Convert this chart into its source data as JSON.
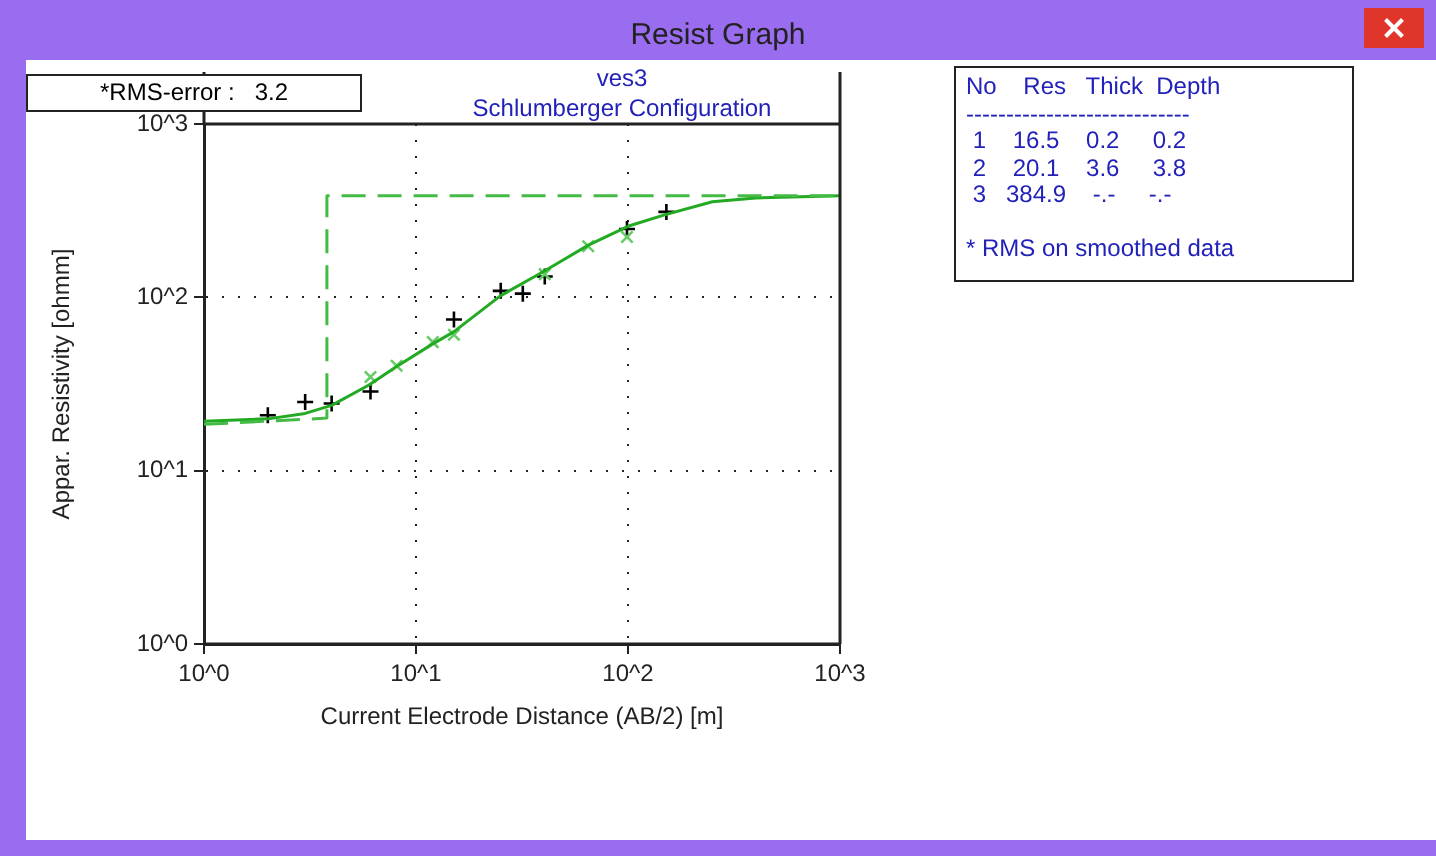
{
  "chart_data": {
    "type": "line",
    "title": "ves3",
    "subtitle": "Schlumberger Configuration",
    "xlabel": "Current Electrode Distance (AB/2) [m]",
    "ylabel": "Appar. Resistivity [ohmm]",
    "log": "xy",
    "grid": true,
    "legend": false,
    "xlim": [
      1,
      1000
    ],
    "xticks": [
      {
        "value": 1,
        "label": "10^0"
      },
      {
        "value": 10,
        "label": "10^1"
      },
      {
        "value": 100,
        "label": "10^2"
      },
      {
        "value": 1000,
        "label": "10^3"
      }
    ],
    "ylim": [
      1,
      1000
    ],
    "yticks": [
      {
        "value": 1,
        "label": "10^0"
      },
      {
        "value": 10,
        "label": "10^1"
      },
      {
        "value": 100,
        "label": "10^2"
      },
      {
        "value": 1000,
        "label": "10^3"
      }
    ],
    "series": [
      {
        "color": "#44bb44",
        "line_style": "dashed",
        "marker": "none",
        "x": [
          1,
          3.8,
          3.8,
          1000
        ],
        "values": [
          18.5,
          20.1,
          384.9,
          384.9
        ]
      },
      {
        "color": "#22aa22",
        "line_style": "solid",
        "marker": "none",
        "x": [
          1,
          2,
          3,
          4,
          6,
          8,
          12,
          15,
          25,
          40,
          65,
          100,
          150,
          250,
          400,
          1000
        ],
        "values": [
          19.3,
          19.9,
          21.4,
          23.8,
          31.2,
          39.5,
          53.9,
          63,
          102,
          141,
          200,
          257,
          300,
          356,
          374,
          385
        ]
      },
      {
        "type": "scatter",
        "color": "#66cc66",
        "marker": "cross",
        "x": [
          6.1,
          8.1,
          12,
          15.1,
          40.5,
          64.9,
          98.9
        ],
        "values": [
          34.7,
          40.3,
          55.2,
          60.8,
          136,
          197,
          223
        ]
      },
      {
        "type": "scatter",
        "color": "#000000",
        "marker": "plus",
        "x": [
          2,
          3,
          4,
          6.1,
          15.1,
          25.1,
          31.9,
          40.5,
          98.9,
          151.7
        ],
        "values": [
          20.9,
          24.9,
          24.4,
          28.6,
          74.5,
          109,
          105,
          132,
          248,
          311
        ]
      }
    ],
    "annotations": [
      "Resist Graph",
      "*RMS-error :   3.2",
      "No    Res   Thick  Depth",
      "----------------------------",
      " 1    16.5    0.2     0.2",
      " 2    20.1    3.6     3.8",
      " 3   384.9    -.-     -.-",
      "* RMS on smoothed data"
    ]
  }
}
